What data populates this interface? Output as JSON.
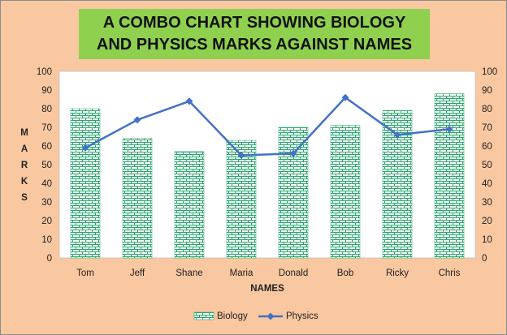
{
  "chart_data": {
    "type": "bar",
    "title": "A COMBO CHART SHOWING BIOLOGY AND PHYSICS MARKS AGAINST NAMES",
    "xlabel": "NAMES",
    "ylabel": "MARKS",
    "categories": [
      "Tom",
      "Jeff",
      "Shane",
      "Maria",
      "Donald",
      "Bob",
      "Ricky",
      "Chris"
    ],
    "series": [
      {
        "name": "Biology",
        "kind": "bar",
        "values": [
          80,
          64,
          57,
          63,
          70,
          71,
          79,
          88
        ]
      },
      {
        "name": "Physics",
        "kind": "line",
        "values": [
          59,
          74,
          84,
          55,
          56,
          86,
          66,
          69
        ]
      }
    ],
    "ylim": [
      0,
      100
    ],
    "y_ticks": [
      0,
      10,
      20,
      30,
      40,
      50,
      60,
      70,
      80,
      90,
      100
    ],
    "secondary_axis": true,
    "grid": false,
    "legend": "bottom",
    "colors": {
      "background": "#f9c7a0",
      "title_box": "#8fd14f",
      "bar_fill": "#ffffff",
      "bar_pattern": "#27a86b",
      "line": "#4472c4",
      "plot_area": "#ffffff"
    }
  }
}
